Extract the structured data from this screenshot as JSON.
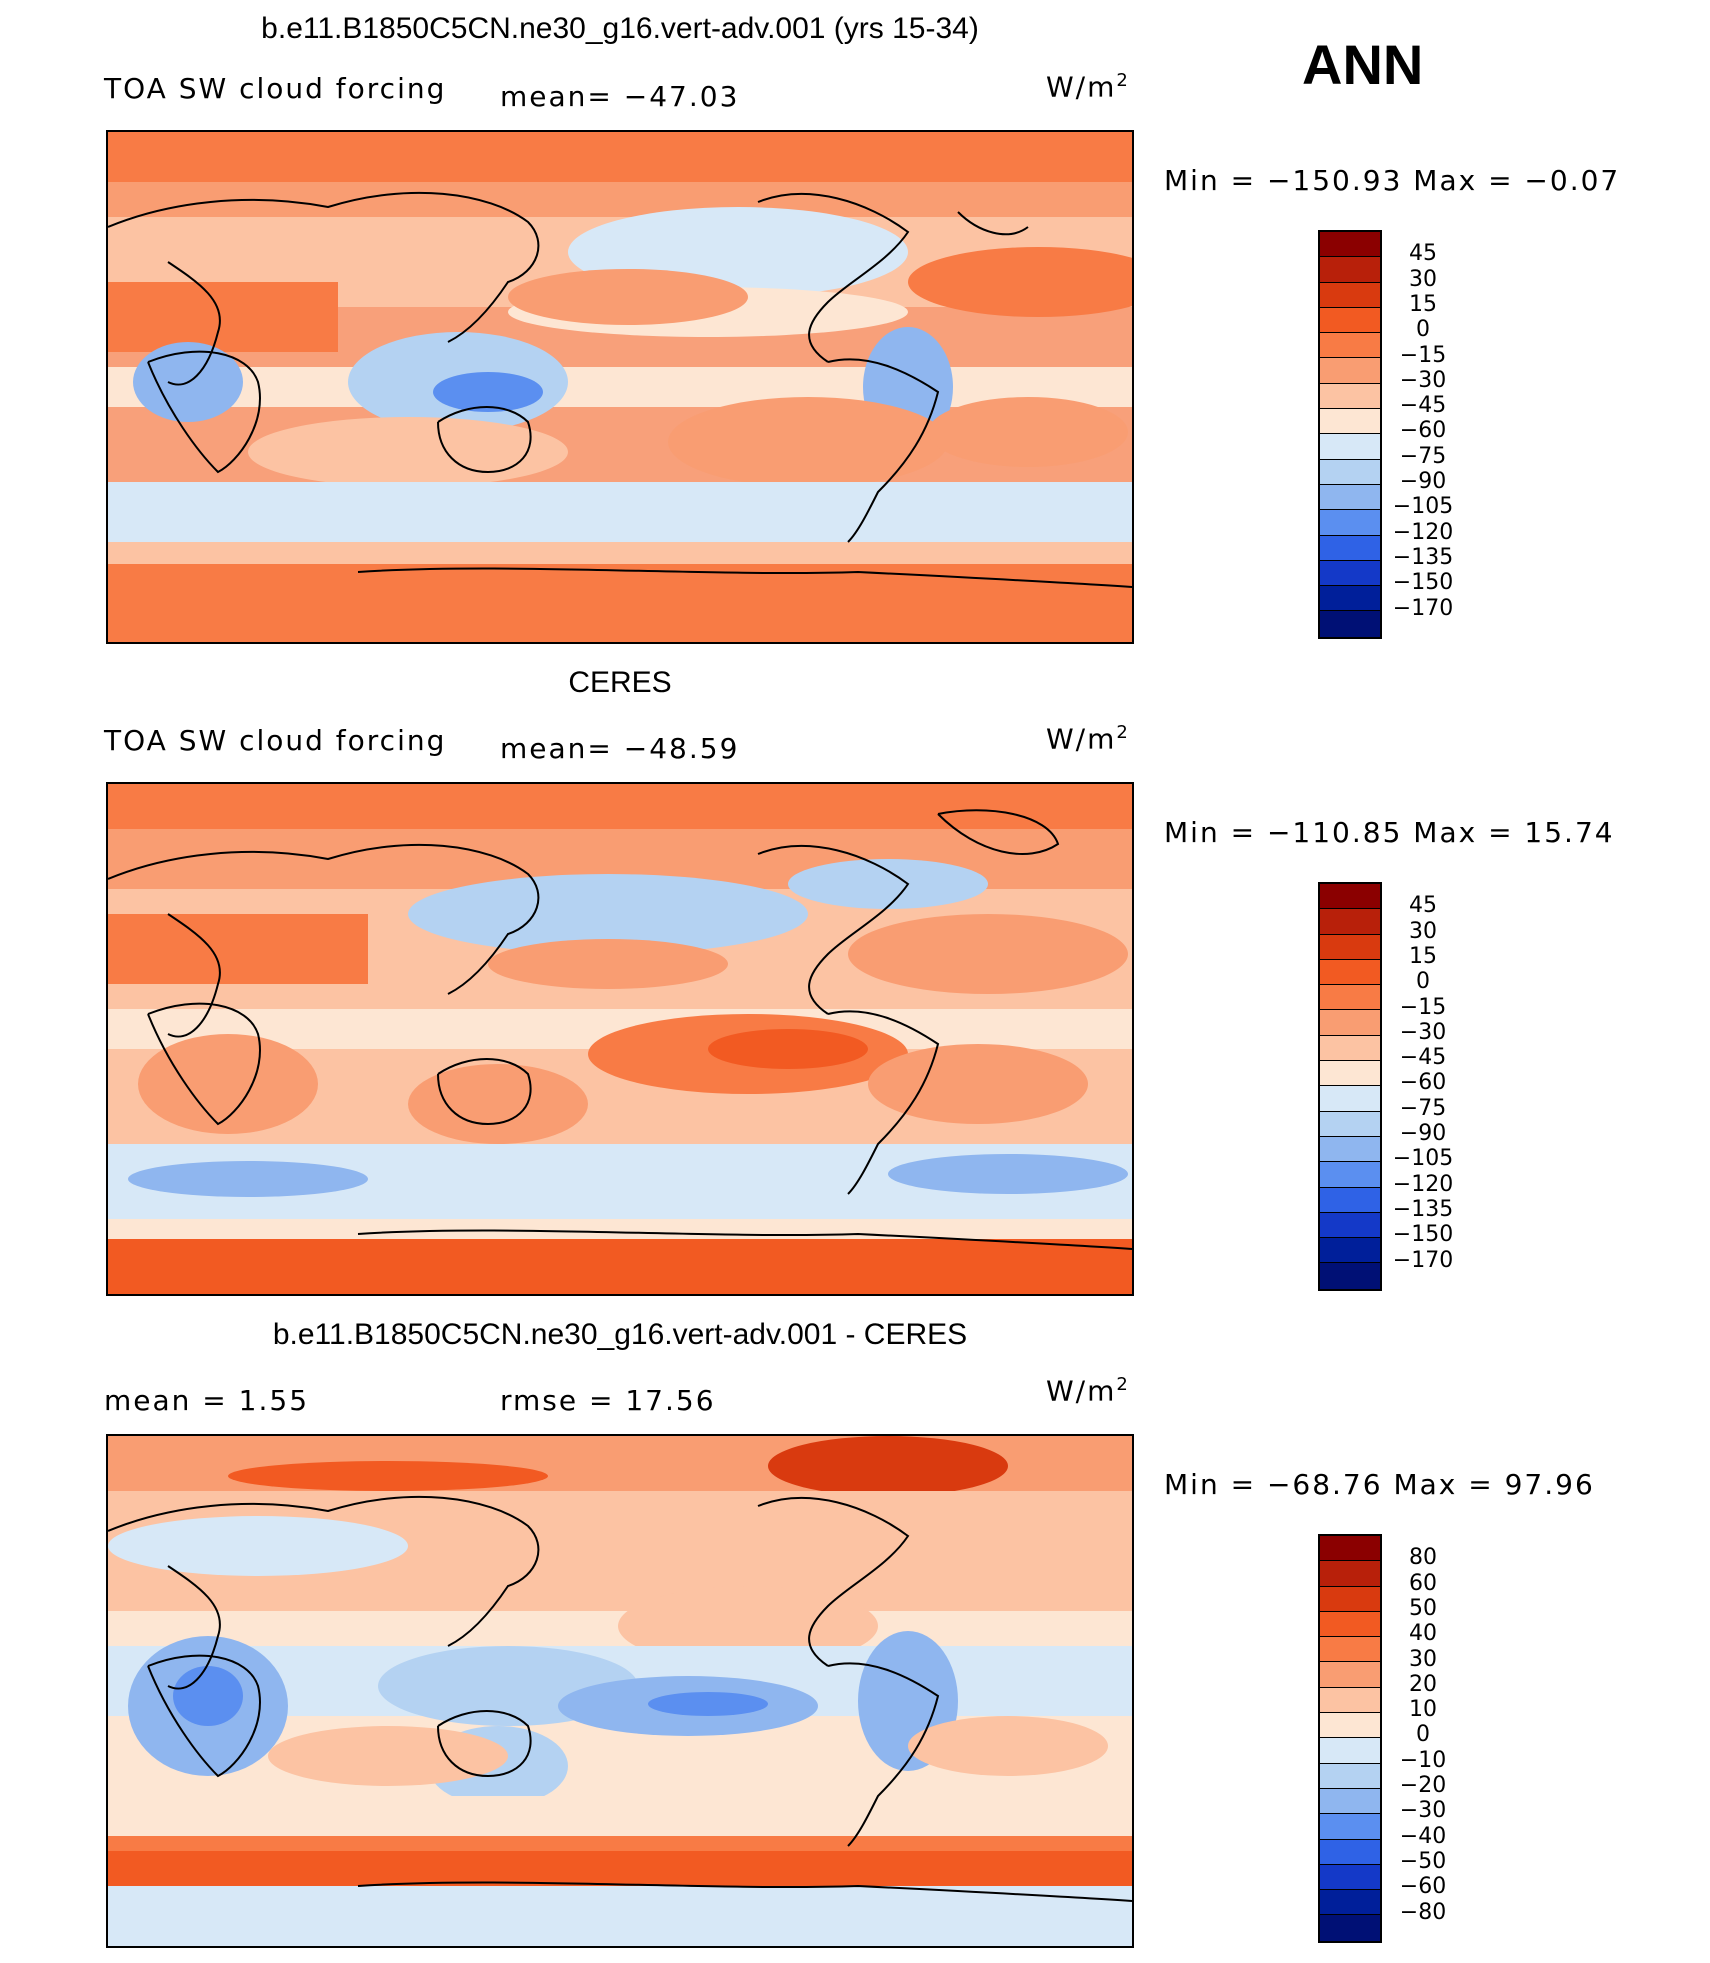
{
  "season": "ANN",
  "panels": [
    {
      "title": "b.e11.B1850C5CN.ne30_g16.vert-adv.001 (yrs 15-34)",
      "left": "TOA SW cloud forcing",
      "middle": "mean= −47.03",
      "unit": "W/m",
      "unit_sup": "2",
      "minmax": "Min = −150.93 Max =  −0.07",
      "colorbar_labels": [
        "45",
        "30",
        "15",
        "0",
        "−15",
        "−30",
        "−45",
        "−60",
        "−75",
        "−90",
        "−105",
        "−120",
        "−135",
        "−150",
        "−170"
      ],
      "colors": [
        "#8b0000",
        "#b8200a",
        "#d93a0f",
        "#f25a22",
        "#f87b45",
        "#f99d72",
        "#fcc3a3",
        "#fde6d3",
        "#d7e8f7",
        "#b4d2f2",
        "#8fb6ef",
        "#5b8ff0",
        "#2f62e6",
        "#1439c8",
        "#001f9a",
        "#001075"
      ]
    },
    {
      "title": "CERES",
      "left": "TOA SW cloud forcing",
      "middle": "mean= −48.59",
      "unit": "W/m",
      "unit_sup": "2",
      "minmax": "Min = −110.85 Max =  15.74",
      "colorbar_labels": [
        "45",
        "30",
        "15",
        "0",
        "−15",
        "−30",
        "−45",
        "−60",
        "−75",
        "−90",
        "−105",
        "−120",
        "−135",
        "−150",
        "−170"
      ],
      "colors": [
        "#8b0000",
        "#b8200a",
        "#d93a0f",
        "#f25a22",
        "#f87b45",
        "#f99d72",
        "#fcc3a3",
        "#fde6d3",
        "#d7e8f7",
        "#b4d2f2",
        "#8fb6ef",
        "#5b8ff0",
        "#2f62e6",
        "#1439c8",
        "#001f9a",
        "#001075"
      ]
    },
    {
      "title": "b.e11.B1850C5CN.ne30_g16.vert-adv.001 - CERES",
      "left": "mean =    1.55",
      "middle": "rmse =   17.56",
      "unit": "W/m",
      "unit_sup": "2",
      "minmax": "Min = −68.76 Max =  97.96",
      "colorbar_labels": [
        "80",
        "60",
        "50",
        "40",
        "30",
        "20",
        "10",
        "0",
        "−10",
        "−20",
        "−30",
        "−40",
        "−50",
        "−60",
        "−80"
      ],
      "colors": [
        "#8b0000",
        "#b8200a",
        "#d93a0f",
        "#f25a22",
        "#f87b45",
        "#f99d72",
        "#fcc3a3",
        "#fde6d3",
        "#d7e8f7",
        "#b4d2f2",
        "#8fb6ef",
        "#5b8ff0",
        "#2f62e6",
        "#1439c8",
        "#001f9a",
        "#001075"
      ]
    }
  ]
}
